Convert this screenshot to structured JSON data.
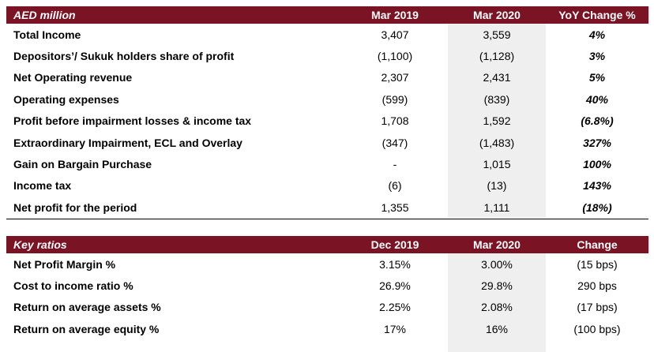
{
  "income_table": {
    "headers": [
      "AED million",
      "Mar 2019",
      "Mar 2020",
      "YoY Change %"
    ],
    "rows": [
      [
        "Total Income",
        "3,407",
        "3,559",
        "4%"
      ],
      [
        "Depositors’/ Sukuk holders share of profit",
        "(1,100)",
        "(1,128)",
        "3%"
      ],
      [
        "Net Operating revenue",
        "2,307",
        "2,431",
        "5%"
      ],
      [
        "Operating expenses",
        "(599)",
        "(839)",
        "40%"
      ],
      [
        "Profit before impairment losses & income tax",
        "1,708",
        "1,592",
        "(6.8%)"
      ],
      [
        "Extraordinary Impairment, ECL and Overlay",
        "(347)",
        "(1,483)",
        "327%"
      ],
      [
        "Gain on Bargain Purchase",
        "-",
        "1,015",
        "100%"
      ],
      [
        "Income tax",
        "(6)",
        "(13)",
        "143%"
      ],
      [
        "Net profit for the period",
        "1,355",
        "1,111",
        "(18%)"
      ]
    ]
  },
  "ratios_table": {
    "headers": [
      "Key ratios",
      "Dec 2019",
      "Mar 2020",
      "Change"
    ],
    "rows": [
      [
        "Net Profit Margin %",
        "3.15%",
        "3.00%",
        "(15 bps)"
      ],
      [
        "Cost to income ratio %",
        "26.9%",
        "29.8%",
        "290 bps"
      ],
      [
        "Return on average assets %",
        "2.25%",
        "2.08%",
        "(17 bps)"
      ],
      [
        "Return on average equity %",
        "17%",
        "16%",
        "(100 bps)"
      ]
    ]
  },
  "colors": {
    "header_bg": "#7a1324",
    "highlight_col": "#efefef"
  }
}
